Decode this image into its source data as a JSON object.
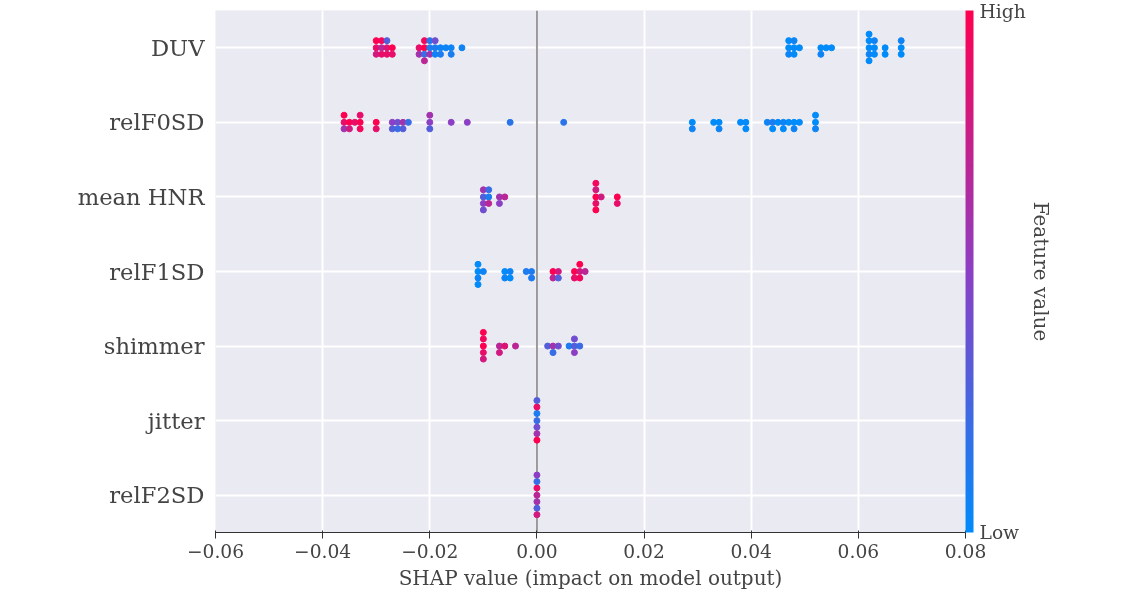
{
  "chart_data": {
    "type": "scatter",
    "orientation": "horizontal",
    "xlabel": "SHAP value (impact on model output)",
    "clabel": "Feature value",
    "categories": [
      "DUV",
      "relF0SD",
      "mean HNR",
      "relF1SD",
      "shimmer",
      "jitter",
      "relF2SD"
    ],
    "series": [
      {
        "x": [
          "DUV",
          "DUV",
          "DUV",
          "DUV",
          "DUV",
          "DUV",
          "DUV",
          "DUV",
          "DUV",
          "DUV",
          "DUV",
          "DUV",
          "DUV",
          "DUV",
          "DUV",
          "DUV",
          "DUV",
          "DUV",
          "DUV",
          "DUV",
          "DUV",
          "DUV",
          "DUV",
          "DUV",
          "DUV",
          "DUV",
          "DUV",
          "DUV",
          "DUV",
          "DUV",
          "DUV",
          "DUV",
          "DUV",
          "DUV",
          "DUV",
          "DUV",
          "DUV",
          "DUV",
          "DUV",
          "DUV",
          "DUV",
          "DUV",
          "DUV",
          "DUV",
          "DUV",
          "DUV",
          "DUV",
          "DUV",
          "DUV",
          "DUV",
          "DUV",
          "DUV",
          "DUV"
        ],
        "values": [
          -0.03,
          -0.03,
          -0.03,
          -0.029,
          -0.029,
          -0.029,
          -0.028,
          -0.028,
          -0.028,
          -0.027,
          -0.027,
          -0.022,
          -0.022,
          -0.021,
          -0.021,
          -0.021,
          -0.021,
          -0.02,
          -0.02,
          -0.02,
          -0.019,
          -0.019,
          -0.019,
          -0.018,
          -0.018,
          -0.017,
          -0.016,
          -0.016,
          -0.014,
          0.047,
          0.047,
          0.047,
          0.048,
          0.048,
          0.048,
          0.049,
          0.053,
          0.053,
          0.054,
          0.055,
          0.062,
          0.062,
          0.062,
          0.062,
          0.062,
          0.063,
          0.063,
          0.063,
          0.065,
          0.065,
          0.068,
          0.068,
          0.068
        ],
        "colors": [
          "#e80d68",
          "#d1197f",
          "#ff0051",
          "#ba2696",
          "#e80d68",
          "#f4065c",
          "#dc1374",
          "#e80d68",
          "#545dda",
          "#ff0051",
          "#e80d68",
          "#e80d68",
          "#a332ad",
          "#ff0051",
          "#386de5",
          "#f4065c",
          "#ba2696",
          "#1c7cf0",
          "#a332ad",
          "#2a74ea",
          "#1c7cf0",
          "#0e83f6",
          "#704ecf",
          "#0e83f6",
          "#1c7cf0",
          "#0e83f6",
          "#0e83f6",
          "#1c7cf0",
          "#0e83f6",
          "#008bfb",
          "#0e83f6",
          "#008bfb",
          "#008bfb",
          "#008bfb",
          "#0e83f6",
          "#008bfb",
          "#008bfb",
          "#0e83f6",
          "#008bfb",
          "#008bfb",
          "#008bfb",
          "#0e83f6",
          "#008bfb",
          "#008bfb",
          "#008bfb",
          "#008bfb",
          "#008bfb",
          "#0e83f6",
          "#008bfb",
          "#008bfb",
          "#008bfb",
          "#008bfb",
          "#0e83f6"
        ],
        "cvalues": [
          0.9,
          0.8,
          1,
          0.7,
          0.9,
          0.95,
          0.85,
          0.9,
          0.3,
          1,
          0.9,
          0.9,
          0.6,
          1,
          0.2,
          0.95,
          0.7,
          0.1,
          0.6,
          0.15,
          0.1,
          0.05,
          0.4,
          0.05,
          0.1,
          0.05,
          0.05,
          0.1,
          0.05,
          0,
          0.05,
          0,
          0,
          0,
          0.05,
          0,
          0,
          0.05,
          0,
          0,
          0,
          0.05,
          0,
          0,
          0,
          0,
          0,
          0.05,
          0,
          0,
          0,
          0,
          0.05
        ]
      },
      {
        "x": [
          "relF0SD",
          "relF0SD",
          "relF0SD",
          "relF0SD",
          "relF0SD",
          "relF0SD",
          "relF0SD",
          "relF0SD",
          "relF0SD",
          "relF0SD",
          "relF0SD",
          "relF0SD",
          "relF0SD",
          "relF0SD",
          "relF0SD",
          "relF0SD",
          "relF0SD",
          "relF0SD",
          "relF0SD",
          "relF0SD",
          "relF0SD",
          "relF0SD",
          "relF0SD",
          "relF0SD",
          "relF0SD",
          "relF0SD",
          "relF0SD",
          "relF0SD",
          "relF0SD",
          "relF0SD",
          "relF0SD",
          "relF0SD",
          "relF0SD",
          "relF0SD",
          "relF0SD",
          "relF0SD",
          "relF0SD",
          "relF0SD",
          "relF0SD",
          "relF0SD",
          "relF0SD",
          "relF0SD",
          "relF0SD",
          "relF0SD",
          "relF0SD",
          "relF0SD"
        ],
        "values": [
          -0.036,
          -0.036,
          -0.036,
          -0.035,
          -0.035,
          -0.034,
          -0.033,
          -0.033,
          -0.033,
          -0.03,
          -0.03,
          -0.027,
          -0.027,
          -0.026,
          -0.026,
          -0.025,
          -0.025,
          -0.024,
          -0.02,
          -0.02,
          -0.02,
          -0.016,
          -0.013,
          -0.005,
          0.005,
          0.029,
          0.029,
          0.033,
          0.034,
          0.034,
          0.038,
          0.039,
          0.039,
          0.043,
          0.044,
          0.044,
          0.045,
          0.046,
          0.046,
          0.047,
          0.048,
          0.048,
          0.049,
          0.052,
          0.052,
          0.052
        ],
        "colors": [
          "#e80d68",
          "#a332ad",
          "#ff0051",
          "#ff0051",
          "#d1197f",
          "#e80d68",
          "#ff0051",
          "#f4065c",
          "#e80d68",
          "#ff0051",
          "#e80d68",
          "#8c3fc4",
          "#545dda",
          "#704ecf",
          "#386de5",
          "#a332ad",
          "#545dda",
          "#386de5",
          "#8c3fc4",
          "#545dda",
          "#a332ad",
          "#8c3fc4",
          "#8c3fc4",
          "#2a74ea",
          "#2a74ea",
          "#008bfb",
          "#0e83f6",
          "#008bfb",
          "#008bfb",
          "#0e83f6",
          "#008bfb",
          "#008bfb",
          "#008bfb",
          "#0e83f6",
          "#1c7cf0",
          "#008bfb",
          "#008bfb",
          "#0e83f6",
          "#008bfb",
          "#008bfb",
          "#008bfb",
          "#0e83f6",
          "#008bfb",
          "#008bfb",
          "#0e83f6",
          "#008bfb"
        ],
        "cvalues": [
          0.9,
          0.6,
          1,
          1,
          0.8,
          0.9,
          1,
          0.95,
          0.9,
          1,
          0.9,
          0.5,
          0.3,
          0.4,
          0.2,
          0.6,
          0.3,
          0.2,
          0.5,
          0.3,
          0.6,
          0.5,
          0.5,
          0.15,
          0.15,
          0,
          0.05,
          0,
          0,
          0.05,
          0,
          0,
          0,
          0.05,
          0.1,
          0,
          0,
          0.05,
          0,
          0,
          0,
          0.05,
          0,
          0,
          0.05,
          0
        ]
      },
      {
        "x": [
          "mean HNR",
          "mean HNR",
          "mean HNR",
          "mean HNR",
          "mean HNR",
          "mean HNR",
          "mean HNR",
          "mean HNR",
          "mean HNR",
          "mean HNR",
          "mean HNR",
          "mean HNR",
          "mean HNR",
          "mean HNR",
          "mean HNR",
          "mean HNR",
          "mean HNR",
          "mean HNR"
        ],
        "values": [
          -0.01,
          -0.01,
          -0.01,
          -0.01,
          -0.009,
          -0.009,
          -0.009,
          -0.007,
          -0.007,
          -0.006,
          0.011,
          0.011,
          0.011,
          0.011,
          0.011,
          0.012,
          0.015,
          0.015
        ],
        "colors": [
          "#545dda",
          "#8c3fc4",
          "#a332ad",
          "#704ecf",
          "#1c7cf0",
          "#ba2696",
          "#386de5",
          "#a332ad",
          "#8c3fc4",
          "#ba2696",
          "#ff0051",
          "#e80d68",
          "#d1197f",
          "#ff0051",
          "#f4065c",
          "#d1197f",
          "#ff0051",
          "#e80d68"
        ],
        "cvalues": [
          0.3,
          0.5,
          0.6,
          0.4,
          0.1,
          0.7,
          0.2,
          0.6,
          0.5,
          0.7,
          1,
          0.9,
          0.8,
          1,
          0.95,
          0.8,
          1,
          0.9
        ]
      },
      {
        "x": [
          "relF1SD",
          "relF1SD",
          "relF1SD",
          "relF1SD",
          "relF1SD",
          "relF1SD",
          "relF1SD",
          "relF1SD",
          "relF1SD",
          "relF1SD",
          "relF1SD",
          "relF1SD",
          "relF1SD",
          "relF1SD",
          "relF1SD",
          "relF1SD",
          "relF1SD",
          "relF1SD",
          "relF1SD",
          "relF1SD",
          "relF1SD",
          "relF1SD"
        ],
        "values": [
          -0.011,
          -0.011,
          -0.011,
          -0.011,
          -0.01,
          -0.006,
          -0.006,
          -0.005,
          -0.005,
          -0.002,
          -0.001,
          -0.001,
          0.003,
          0.003,
          0.004,
          0.004,
          0.007,
          0.007,
          0.008,
          0.008,
          0.008,
          0.009
        ],
        "colors": [
          "#008bfb",
          "#0e83f6",
          "#008bfb",
          "#008bfb",
          "#0e83f6",
          "#008bfb",
          "#0e83f6",
          "#0e83f6",
          "#008bfb",
          "#1c7cf0",
          "#1c7cf0",
          "#1c7cf0",
          "#ff0051",
          "#ba2696",
          "#d1197f",
          "#545dda",
          "#ff0051",
          "#e80d68",
          "#d1197f",
          "#f4065c",
          "#ff0051",
          "#ba2696"
        ],
        "cvalues": [
          0,
          0.05,
          0,
          0,
          0.05,
          0,
          0.05,
          0.05,
          0,
          0.1,
          0.1,
          0.1,
          1,
          0.7,
          0.8,
          0.3,
          1,
          0.9,
          0.8,
          0.95,
          1,
          0.7
        ]
      },
      {
        "x": [
          "shimmer",
          "shimmer",
          "shimmer",
          "shimmer",
          "shimmer",
          "shimmer",
          "shimmer",
          "shimmer",
          "shimmer",
          "shimmer",
          "shimmer",
          "shimmer",
          "shimmer",
          "shimmer",
          "shimmer",
          "shimmer",
          "shimmer",
          "shimmer"
        ],
        "values": [
          -0.01,
          -0.01,
          -0.01,
          -0.01,
          -0.01,
          -0.007,
          -0.007,
          -0.006,
          -0.004,
          0.002,
          0.003,
          0.003,
          0.004,
          0.006,
          0.007,
          0.007,
          0.007,
          0.008
        ],
        "colors": [
          "#ff0051",
          "#e80d68",
          "#f4065c",
          "#d1197f",
          "#ff0051",
          "#ba2696",
          "#d1197f",
          "#dc1374",
          "#ba2696",
          "#545dda",
          "#a332ad",
          "#386de5",
          "#704ecf",
          "#1c7cf0",
          "#545dda",
          "#8c3fc4",
          "#704ecf",
          "#386de5"
        ],
        "cvalues": [
          1,
          0.9,
          0.95,
          0.8,
          1,
          0.7,
          0.8,
          0.85,
          0.7,
          0.3,
          0.6,
          0.2,
          0.4,
          0.1,
          0.3,
          0.5,
          0.4,
          0.2
        ]
      },
      {
        "x": [
          "jitter",
          "jitter",
          "jitter",
          "jitter",
          "jitter",
          "jitter",
          "jitter"
        ],
        "values": [
          0,
          0,
          0,
          0,
          0,
          0,
          0
        ],
        "colors": [
          "#386de5",
          "#704ecf",
          "#1c7cf0",
          "#a332ad",
          "#e80d68",
          "#ff0051",
          "#545dda"
        ],
        "cvalues": [
          0.2,
          0.4,
          0.1,
          0.6,
          0.9,
          1,
          0.3
        ]
      },
      {
        "x": [
          "relF2SD",
          "relF2SD",
          "relF2SD",
          "relF2SD",
          "relF2SD",
          "relF2SD",
          "relF2SD"
        ],
        "values": [
          0,
          0,
          0,
          0,
          0,
          0,
          0
        ],
        "colors": [
          "#ba2696",
          "#a332ad",
          "#e80d68",
          "#545dda",
          "#386de5",
          "#d1197f",
          "#8c3fc4"
        ],
        "cvalues": [
          0.7,
          0.6,
          0.9,
          0.3,
          0.2,
          0.8,
          0.5
        ]
      }
    ],
    "xlim": [
      -0.06,
      0.08
    ],
    "xticks": [
      {
        "value": -0.06,
        "label": "−0.06"
      },
      {
        "value": -0.04,
        "label": "−0.04"
      },
      {
        "value": -0.02,
        "label": "−0.02"
      },
      {
        "value": 0,
        "label": "0.00"
      },
      {
        "value": 0.02,
        "label": "0.02"
      },
      {
        "value": 0.04,
        "label": "0.04"
      },
      {
        "value": 0.06,
        "label": "0.06"
      },
      {
        "value": 0.08,
        "label": "0.08"
      }
    ],
    "clim": [
      0,
      1
    ],
    "cticks": [
      {
        "value": 0,
        "label": "Low"
      },
      {
        "value": 1,
        "label": "High"
      }
    ],
    "ref_lines": [
      {
        "axis": "x",
        "value": 0,
        "color": "#999999"
      }
    ],
    "grid": true,
    "marker": "circle"
  }
}
